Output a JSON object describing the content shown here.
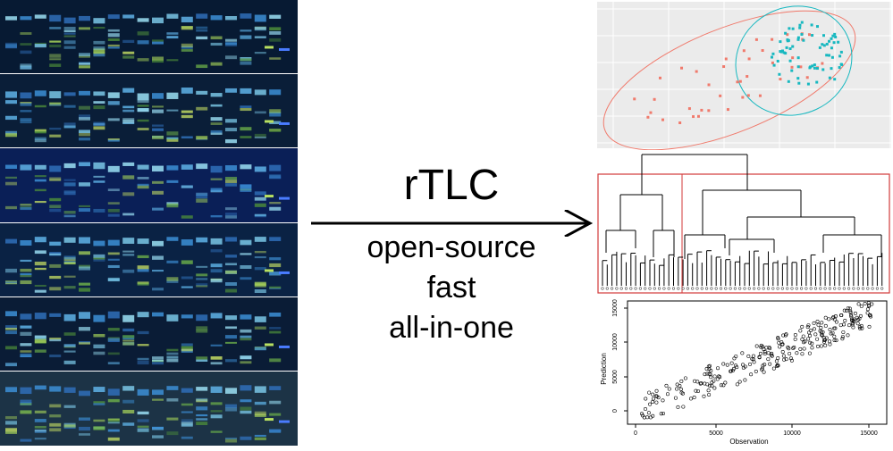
{
  "plates": [
    {
      "bg": "#071a33",
      "lanes": [
        "#1b3b6a",
        "#1f5a86",
        "#2a6aa0",
        "#2a6aa0",
        "#255e8a",
        "#1f4d76",
        "#1f4d76",
        "#2a6aa0",
        "#1f4d76",
        "#1f4d76",
        "#2a6aa0",
        "#2a6aa0",
        "#1f4d76",
        "#2a6aa0",
        "#1f4d76",
        "#1f4d76",
        "#1f4d76",
        "#1f4d76",
        "#1f4d76"
      ]
    },
    {
      "bg": "#0a1e38",
      "lanes": []
    },
    {
      "bg": "#0a1f57",
      "lanes": []
    },
    {
      "bg": "#0a2244",
      "lanes": []
    },
    {
      "bg": "#0a1c36",
      "lanes": []
    },
    {
      "bg": "#1c3346",
      "lanes": []
    }
  ],
  "center": {
    "title": "rTLC",
    "features": [
      "open-source",
      "fast",
      "all-in-one"
    ]
  },
  "scatter_axes": {
    "xlabel": "Observation",
    "ylabel": "Prediction",
    "xticks": [
      "0",
      "5000",
      "10000",
      "15000"
    ],
    "yticks": [
      "0",
      "5000",
      "10000",
      "15000"
    ]
  },
  "colors": {
    "pca_red": "#f07a6c",
    "pca_cyan": "#18b8c0",
    "pca_bg": "#ebebeb",
    "dendro_box": "#d33a3a"
  }
}
